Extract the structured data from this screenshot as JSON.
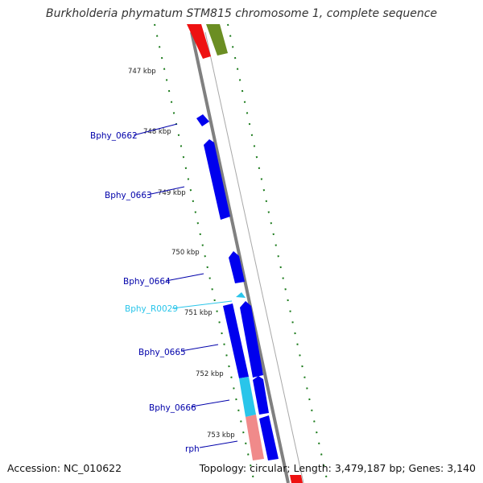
{
  "title": "Burkholderia phymatum STM815 chromosome 1, complete sequence",
  "footer": {
    "accession": "Accession: NC_010622",
    "summary": "Topology: circular; Length: 3,479,187 bp; Genes: 3,140"
  },
  "colors": {
    "cds": "#0000ee",
    "rna": "#29c5ea",
    "red_feature": "#ee1111",
    "pink_feature": "#f08a8a",
    "olive_feature": "#6b8e23",
    "backbone": "#808080",
    "tick": "#1a7a1a",
    "cds_label": "#0000aa",
    "rna_label": "#29c5ea"
  },
  "ticks": [
    {
      "label": "747 kbp"
    },
    {
      "label": "748 kbp"
    },
    {
      "label": "749 kbp"
    },
    {
      "label": "750 kbp"
    },
    {
      "label": "751 kbp"
    },
    {
      "label": "752 kbp"
    },
    {
      "label": "753 kbp"
    }
  ],
  "genes": [
    {
      "label": "Bphy_0662",
      "type": "cds"
    },
    {
      "label": "Bphy_0663",
      "type": "cds"
    },
    {
      "label": "Bphy_0664",
      "type": "cds"
    },
    {
      "label": "Bphy_R0029",
      "type": "rna"
    },
    {
      "label": "Bphy_0665",
      "type": "cds"
    },
    {
      "label": "Bphy_0666",
      "type": "cds"
    },
    {
      "label": "rph",
      "type": "cds"
    }
  ]
}
